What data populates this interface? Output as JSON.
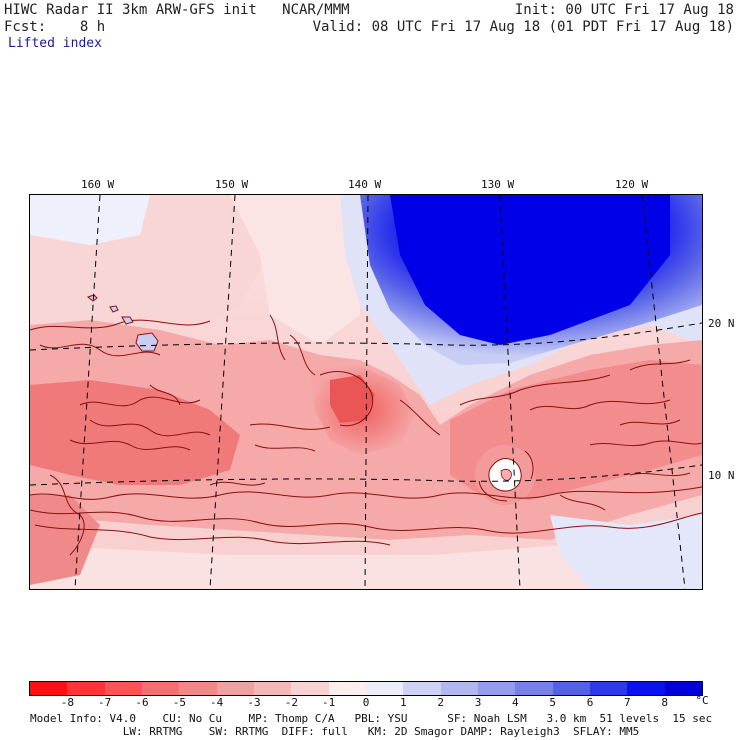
{
  "header": {
    "title": "HIWC Radar II 3km ARW-GFS init   NCAR/MMM",
    "init": "Init: 00 UTC Fri 17 Aug 18",
    "fcst": "Fcst:    8 h",
    "valid": "Valid: 08 UTC Fri 17 Aug 18 (01 PDT Fri 17 Aug 18)",
    "field": "Lifted index"
  },
  "map": {
    "lon_labels": [
      "160 W",
      "150 W",
      "140 W",
      "130 W",
      "120 W"
    ],
    "lat_labels": [
      "20 N",
      "10 N"
    ],
    "colors": {
      "land_outline": "#8a0f0f",
      "grid": "#000000"
    }
  },
  "colorbar": {
    "labels": [
      "-8",
      "-7",
      "-6",
      "-5",
      "-4",
      "-3",
      "-2",
      "-1",
      "0",
      "1",
      "2",
      "3",
      "4",
      "5",
      "6",
      "7",
      "8"
    ],
    "unit": "°C",
    "colors": [
      "#ff1010",
      "#ff3535",
      "#fb5454",
      "#f56f6f",
      "#f08888",
      "#f1a0a0",
      "#f4b8b8",
      "#f8d2d2",
      "#fdeeee",
      "#ebedfb",
      "#ced3f6",
      "#b1b8f1",
      "#949ded",
      "#7680e8",
      "#5460e6",
      "#2d3ae8",
      "#0a12ee",
      "#0000d8"
    ]
  },
  "footer": {
    "line1": "Model Info: V4.0    CU: No Cu    MP: Thomp C/A   PBL: YSU      SF: Noah LSM   3.0 km  51 levels  15 sec",
    "line2": "              LW: RRTMG    SW: RRTMG  DIFF: full   KM: 2D Smagor DAMP: Rayleigh3  SFLAY: MM5"
  }
}
